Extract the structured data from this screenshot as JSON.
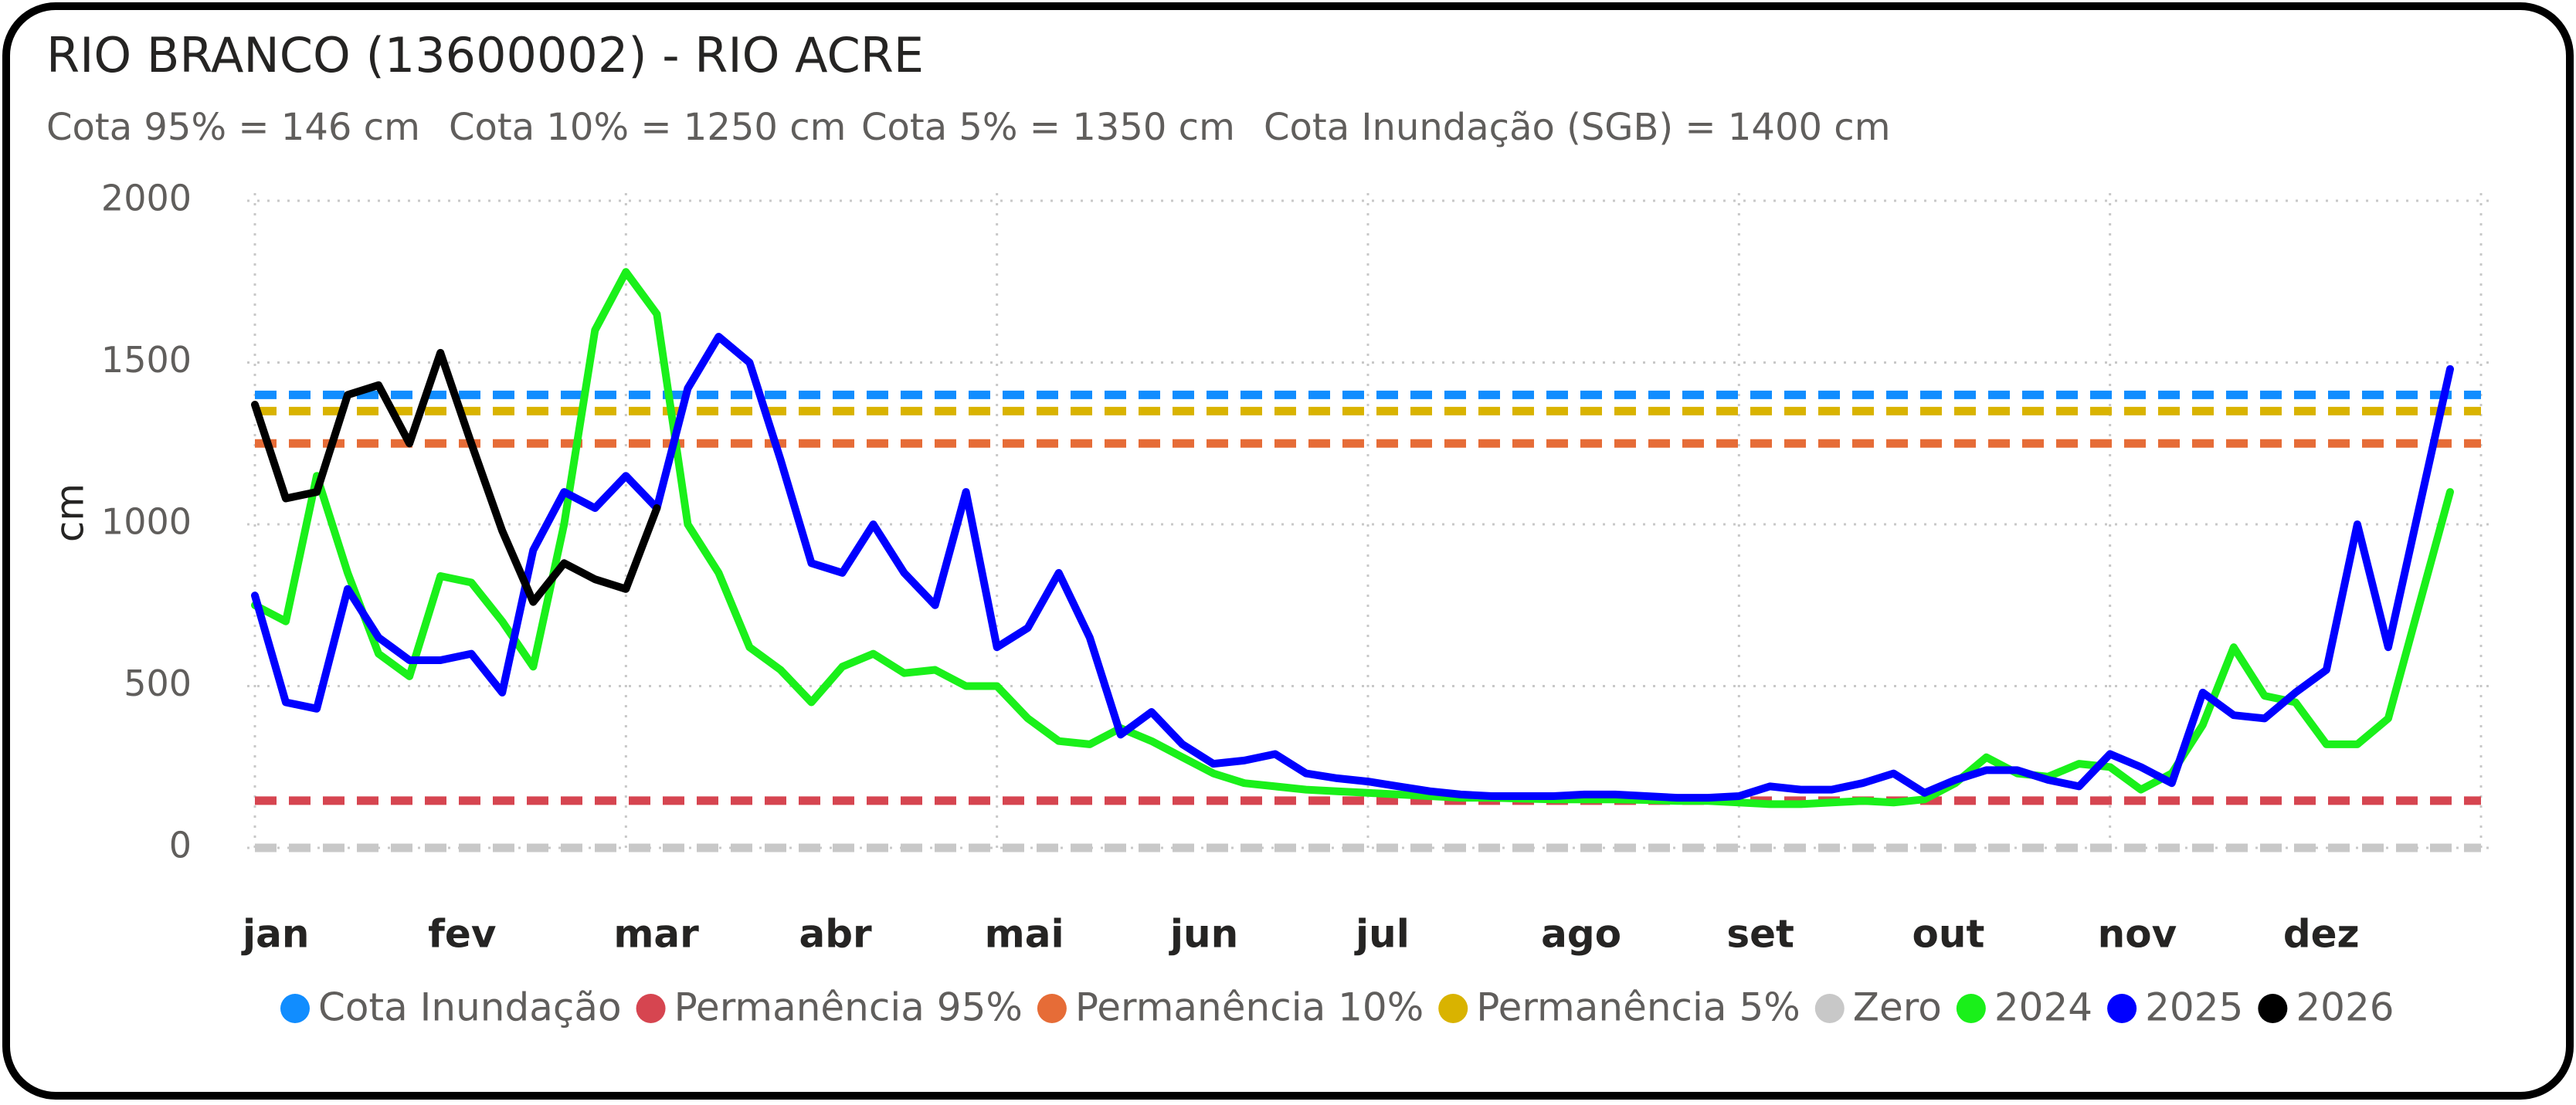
{
  "chart_data": {
    "type": "line",
    "title": "RIO BRANCO (13600002) - RIO ACRE",
    "annotations": [
      "Cota 95% = 146 cm",
      "Cota 10% = 1250 cm",
      "Cota 5% = 1350 cm",
      "Cota Inundação (SGB) = 1400 cm"
    ],
    "y_label": "cm",
    "ylim": [
      0,
      2000
    ],
    "yticks": [
      0,
      500,
      1000,
      1500,
      2000
    ],
    "grid": true,
    "legend": "bottom",
    "categories": [
      "jan",
      null,
      null,
      null,
      null,
      null,
      "fev",
      null,
      null,
      null,
      null,
      null,
      "mar",
      null,
      null,
      null,
      null,
      null,
      "abr",
      null,
      null,
      null,
      null,
      null,
      "mai",
      null,
      null,
      null,
      null,
      null,
      "jun",
      null,
      null,
      null,
      null,
      null,
      "jul",
      null,
      null,
      null,
      null,
      null,
      "ago",
      null,
      null,
      null,
      null,
      null,
      "set",
      null,
      null,
      null,
      null,
      null,
      "out",
      null,
      null,
      null,
      null,
      null,
      "nov",
      null,
      null,
      null,
      null,
      null,
      "dez",
      null,
      null,
      null,
      null,
      null
    ],
    "series": [
      {
        "name": "Cota Inundação",
        "color": "#118DFF",
        "value": 1400,
        "style": "dashed"
      },
      {
        "name": "Permanência 95%",
        "color": "#D64550",
        "value": 146,
        "style": "dashed"
      },
      {
        "name": "Permanência 10%",
        "color": "#E66C37",
        "value": 1250,
        "style": "dashed"
      },
      {
        "name": "Permanência 5%",
        "color": "#D9B300",
        "value": 1350,
        "style": "dashed"
      },
      {
        "name": "Zero",
        "color": "#C8C8C8",
        "value": 0,
        "style": "dashed"
      },
      {
        "name": "2024",
        "color": "#1AF01A",
        "values": [
          750,
          700,
          1150,
          850,
          600,
          530,
          840,
          820,
          700,
          560,
          1000,
          1600,
          1780,
          1650,
          1000,
          850,
          620,
          550,
          450,
          560,
          600,
          540,
          550,
          500,
          500,
          400,
          330,
          320,
          370,
          330,
          280,
          230,
          200,
          190,
          180,
          175,
          170,
          165,
          160,
          155,
          155,
          152,
          150,
          150,
          150,
          148,
          145,
          145,
          140,
          135,
          135,
          140,
          145,
          140,
          150,
          200,
          280,
          230,
          220,
          260,
          250,
          180,
          230,
          380,
          620,
          470,
          450,
          320,
          320,
          400,
          750,
          1100
        ]
      },
      {
        "name": "2025",
        "color": "#0000FF",
        "values": [
          780,
          450,
          430,
          800,
          650,
          580,
          580,
          600,
          480,
          920,
          1100,
          1050,
          1150,
          1050,
          1420,
          1580,
          1500,
          1200,
          880,
          850,
          1000,
          850,
          750,
          1100,
          620,
          680,
          850,
          650,
          350,
          420,
          320,
          260,
          270,
          290,
          230,
          215,
          205,
          190,
          175,
          165,
          160,
          160,
          160,
          165,
          165,
          160,
          155,
          155,
          160,
          190,
          180,
          180,
          200,
          230,
          170,
          210,
          240,
          240,
          210,
          190,
          290,
          250,
          200,
          480,
          410,
          400,
          480,
          550,
          1000,
          620,
          1050,
          1480
        ]
      },
      {
        "name": "2026",
        "color": "#000000",
        "values": [
          1370,
          1080,
          1100,
          1400,
          1430,
          1250,
          1530,
          1250,
          980,
          760,
          880,
          830,
          800,
          1050,
          null,
          null,
          null,
          null,
          null,
          null,
          null,
          null,
          null,
          null,
          null,
          null,
          null,
          null,
          null,
          null,
          null,
          null,
          null,
          null,
          null,
          null,
          null,
          null,
          null,
          null,
          null,
          null,
          null,
          null,
          null,
          null,
          null,
          null,
          null,
          null,
          null,
          null,
          null,
          null,
          null,
          null,
          null,
          null,
          null,
          null,
          null,
          null,
          null,
          null,
          null,
          null,
          null,
          null,
          null,
          null,
          null,
          null
        ]
      }
    ]
  }
}
